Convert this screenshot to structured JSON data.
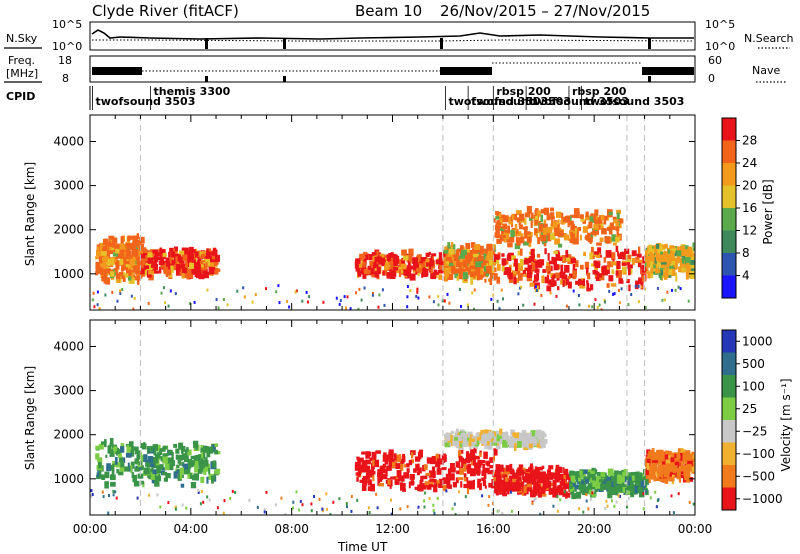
{
  "header": {
    "station": "Clyde River (fitACF)",
    "beam": "Beam 10",
    "dates": "26/Nov/2015 – 27/Nov/2015"
  },
  "top_panels": {
    "nsky_label": "N.Sky",
    "nsky_ticks": [
      "10^5",
      "10^0"
    ],
    "nsky_right_ticks": [
      "10^5",
      "10^0"
    ],
    "nsearch_label": "N.Search",
    "freq_label_1": "Freq.",
    "freq_label_2": "[MHz]",
    "freq_ticks": [
      "18",
      "8"
    ],
    "nave_ticks": [
      "60",
      "0"
    ],
    "nave_label": "Nave",
    "cpid_label": "CPID",
    "cpid_entries": [
      {
        "name": "twofsound 3503",
        "hour": 0.1,
        "row": 1
      },
      {
        "name": "themis 3300",
        "hour": 2.4,
        "row": 0
      },
      {
        "name": "twofsound 3503",
        "hour": 14.1,
        "row": 1
      },
      {
        "name": "twofsound 3503",
        "hour": 15.0,
        "row": 1
      },
      {
        "name": "rbsp 200",
        "hour": 16.0,
        "row": 0
      },
      {
        "name": "twofsound 3503",
        "hour": 17.3,
        "row": 1
      },
      {
        "name": "rbsp 200",
        "hour": 19.0,
        "row": 0
      },
      {
        "name": "twofsound 3503",
        "hour": 19.5,
        "row": 1
      }
    ]
  },
  "axes": {
    "ylabel": "Slant Range [km]",
    "xlabel": "Time UT",
    "xticks": [
      "00:00",
      "04:00",
      "08:00",
      "12:00",
      "16:00",
      "20:00",
      "00:00"
    ],
    "yticks": [
      "1000",
      "2000",
      "3000",
      "4000"
    ]
  },
  "power_scale": {
    "label": "Power [dB]",
    "ticks": [
      "4",
      "8",
      "12",
      "16",
      "20",
      "24",
      "28"
    ],
    "colors": [
      "#1a14ff",
      "#2d55b0",
      "#3e8a5c",
      "#5aaa4c",
      "#e6c22a",
      "#f39a1c",
      "#f2641a",
      "#e8141a"
    ]
  },
  "velocity_scale": {
    "label": "Velocity [m s⁻¹]",
    "ticks": [
      "1000",
      "500",
      "100",
      "25",
      "−25",
      "−100",
      "−500",
      "−1000"
    ],
    "colors": [
      "#2438b8",
      "#2f6e8c",
      "#3a9448",
      "#7ccc44",
      "#c8c8c8",
      "#f0b030",
      "#f07a1c",
      "#e8141a"
    ]
  },
  "chart_data": [
    {
      "type": "heatmap",
      "title": "Power",
      "xlabel": "Time UT",
      "ylabel": "Slant Range [km]",
      "xlim": [
        0,
        24
      ],
      "ylim": [
        180,
        4600
      ],
      "zlabel": "Power [dB]",
      "zlim": [
        0,
        32
      ],
      "vertical_markers_hours": [
        2.0,
        14.0,
        16.0,
        21.3,
        22.0
      ],
      "regions": [
        {
          "t": [
            0.2,
            2.0
          ],
          "r": [
            800,
            1900
          ],
          "value": 24
        },
        {
          "t": [
            2.0,
            5.0
          ],
          "r": [
            900,
            1600
          ],
          "value": 28
        },
        {
          "t": [
            10.5,
            14.0
          ],
          "r": [
            900,
            1500
          ],
          "value": 28
        },
        {
          "t": [
            14.0,
            16.0
          ],
          "r": [
            800,
            1700
          ],
          "value": 24
        },
        {
          "t": [
            16.0,
            22.0
          ],
          "r": [
            600,
            1600
          ],
          "value": 28
        },
        {
          "t": [
            16.0,
            21.0
          ],
          "r": [
            1600,
            2500
          ],
          "value": 24
        },
        {
          "t": [
            22.0,
            23.9
          ],
          "r": [
            900,
            1700
          ],
          "value": 20
        }
      ]
    },
    {
      "type": "heatmap",
      "title": "Velocity",
      "xlabel": "Time UT",
      "ylabel": "Slant Range [km]",
      "xlim": [
        0,
        24
      ],
      "ylim": [
        180,
        4600
      ],
      "zlabel": "Velocity [m s⁻¹]",
      "zlim": [
        -1000,
        1000
      ],
      "vertical_markers_hours": [
        2.0,
        14.0,
        16.0,
        21.3,
        22.0
      ],
      "regions": [
        {
          "t": [
            0.2,
            5.0
          ],
          "r": [
            800,
            1900
          ],
          "value": 100
        },
        {
          "t": [
            10.5,
            16.0
          ],
          "r": [
            700,
            1700
          ],
          "value": -500
        },
        {
          "t": [
            14.0,
            18.0
          ],
          "r": [
            1700,
            2100
          ],
          "value": 0
        },
        {
          "t": [
            16.0,
            19.0
          ],
          "r": [
            600,
            1300
          ],
          "value": -500
        },
        {
          "t": [
            19.0,
            22.0
          ],
          "r": [
            600,
            1200
          ],
          "value": 100
        },
        {
          "t": [
            22.0,
            23.9
          ],
          "r": [
            900,
            1700
          ],
          "value": -100
        }
      ]
    }
  ]
}
